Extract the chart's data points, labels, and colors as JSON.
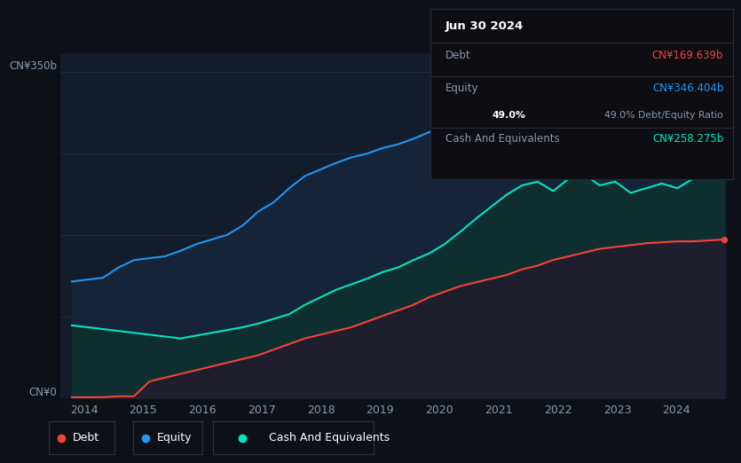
{
  "background_color": "#0d1117",
  "plot_bg_color": "#131c2b",
  "title": "Jun 30 2024",
  "ylabel_top": "CN¥350b",
  "ylabel_bottom": "CN¥0",
  "equity_color": "#2196f3",
  "debt_color": "#f44336",
  "cash_color": "#00e5c3",
  "equity_fill": "#1a3a5c",
  "cash_fill": "#0d3535",
  "debt_fill": "#252535",
  "grid_color": "#1e2d3d",
  "tooltip": {
    "date": "Jun 30 2024",
    "debt_label": "Debt",
    "debt_value": "CN¥169.639b",
    "equity_label": "Equity",
    "equity_value": "CN¥346.404b",
    "ratio_value": "49.0%",
    "ratio_label": "Debt/Equity Ratio",
    "cash_label": "Cash And Equivalents",
    "cash_value": "CN¥258.275b"
  },
  "legend": [
    {
      "label": "Debt",
      "color": "#f44336"
    },
    {
      "label": "Equity",
      "color": "#2196f3"
    },
    {
      "label": "Cash And Equivalents",
      "color": "#00e5c3"
    }
  ],
  "equity_data": [
    125,
    127,
    129,
    140,
    148,
    150,
    152,
    158,
    165,
    170,
    175,
    185,
    200,
    210,
    225,
    238,
    245,
    252,
    258,
    262,
    268,
    272,
    278,
    285,
    292,
    298,
    302,
    308,
    312,
    315,
    318,
    320,
    325,
    330,
    332,
    334,
    336,
    338,
    340,
    342,
    344,
    345,
    346
  ],
  "debt_data": [
    1,
    1,
    1,
    2,
    2,
    18,
    22,
    26,
    30,
    34,
    38,
    42,
    46,
    52,
    58,
    64,
    68,
    72,
    76,
    82,
    88,
    94,
    100,
    108,
    114,
    120,
    124,
    128,
    132,
    138,
    142,
    148,
    152,
    156,
    160,
    162,
    164,
    166,
    167,
    168,
    168,
    169,
    170
  ],
  "cash_data": [
    78,
    76,
    74,
    72,
    70,
    68,
    66,
    64,
    67,
    70,
    73,
    76,
    80,
    85,
    90,
    100,
    108,
    116,
    122,
    128,
    135,
    140,
    148,
    155,
    165,
    178,
    192,
    205,
    218,
    228,
    232,
    222,
    235,
    240,
    228,
    232,
    220,
    225,
    230,
    225,
    235,
    248,
    258
  ],
  "ylim": [
    0,
    370
  ],
  "xlim_start": 2013.6,
  "xlim_end": 2024.85,
  "num_points": 43,
  "x_ticks": [
    2014,
    2015,
    2016,
    2017,
    2018,
    2019,
    2020,
    2021,
    2022,
    2023,
    2024
  ],
  "grid_lines": [
    87.5,
    175,
    262.5,
    350
  ]
}
